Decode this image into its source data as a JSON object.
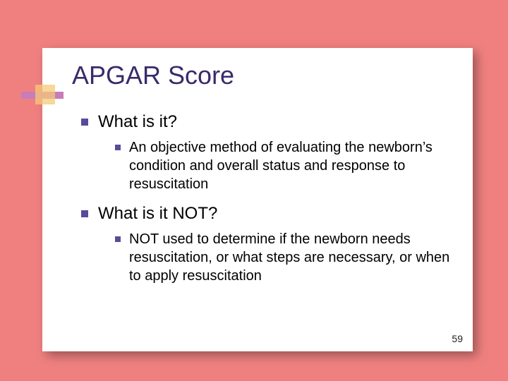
{
  "slide": {
    "title": "APGAR Score",
    "page_number": "59",
    "background_color": "#f08080",
    "slide_color": "#ffffff",
    "title_color": "#3a2a6a",
    "bullet_color": "#5a4a9a",
    "accent_bar_color": "#c77db8",
    "accent_square_color": "#f6c97a",
    "items": [
      {
        "label": "What is it?",
        "sub": "An objective method of evaluating the newborn’s condition and overall status and response to resuscitation"
      },
      {
        "label": "What is it NOT?",
        "sub": "NOT used to determine if the newborn needs resuscitation, or what steps are necessary, or when to apply resuscitation"
      }
    ]
  }
}
